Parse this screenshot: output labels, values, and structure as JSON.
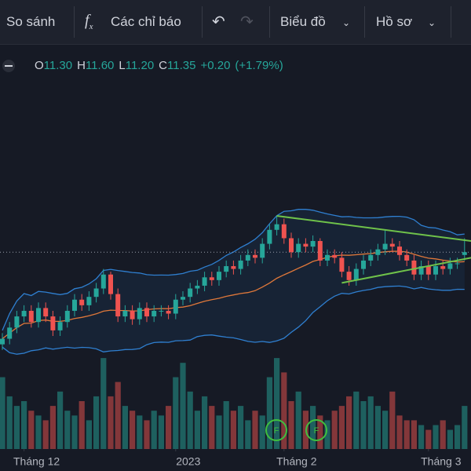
{
  "toolbar": {
    "compare": "So sánh",
    "indicators": "Các chỉ báo",
    "chart": "Biểu đồ",
    "profile": "Hồ sơ"
  },
  "legend": {
    "items": [
      {
        "label": "O",
        "value": "11.30"
      },
      {
        "label": "H",
        "value": "11.60"
      },
      {
        "label": "L",
        "value": "11.20"
      },
      {
        "label": "C",
        "value": "11.35"
      }
    ],
    "change": "+0.20",
    "change_pct": "(+1.79%)"
  },
  "chart_data": {
    "type": "candlestick",
    "xticks": [
      {
        "value": 3,
        "label": "Tháng 12"
      },
      {
        "value": 24,
        "label": "2023"
      },
      {
        "value": 39,
        "label": "Tháng 2"
      },
      {
        "value": 59,
        "label": "Tháng 3"
      }
    ],
    "ylim": [
      9.4,
      14.6
    ],
    "open": [
      9.7,
      9.8,
      10.0,
      10.2,
      10.3,
      10.1,
      10.35,
      10.2,
      9.95,
      10.1,
      10.3,
      10.5,
      10.4,
      10.55,
      10.7,
      10.95,
      10.6,
      10.2,
      10.3,
      10.15,
      10.35,
      10.2,
      10.3,
      10.3,
      10.25,
      10.5,
      10.55,
      10.7,
      10.75,
      10.9,
      10.85,
      11.0,
      11.1,
      11.05,
      11.2,
      11.3,
      11.25,
      11.5,
      11.75,
      11.85,
      11.6,
      11.35,
      11.5,
      11.45,
      11.55,
      11.2,
      11.3,
      11.25,
      11.0,
      10.85,
      11.05,
      11.2,
      11.3,
      11.4,
      11.5,
      11.45,
      11.3,
      11.2,
      10.95,
      11.1,
      10.95,
      11.1,
      11.05,
      11.15,
      11.3
    ],
    "high": [
      9.9,
      10.1,
      10.3,
      10.4,
      10.4,
      10.45,
      10.45,
      10.3,
      10.2,
      10.4,
      10.6,
      10.6,
      10.65,
      10.8,
      11.05,
      11.0,
      10.7,
      10.4,
      10.4,
      10.45,
      10.45,
      10.4,
      10.4,
      10.4,
      10.6,
      10.65,
      10.8,
      10.85,
      11.0,
      11.0,
      11.1,
      11.2,
      11.2,
      11.3,
      11.4,
      11.4,
      11.6,
      11.85,
      12.0,
      11.95,
      11.7,
      11.6,
      11.6,
      11.65,
      11.6,
      11.4,
      11.4,
      11.35,
      11.1,
      11.15,
      11.3,
      11.4,
      11.5,
      11.75,
      11.6,
      11.55,
      11.4,
      11.3,
      11.2,
      11.2,
      11.2,
      11.2,
      11.25,
      11.25,
      11.6
    ],
    "low": [
      9.6,
      9.7,
      9.9,
      10.1,
      10.0,
      10.0,
      10.1,
      9.85,
      9.85,
      10.0,
      10.2,
      10.3,
      10.3,
      10.45,
      10.6,
      10.5,
      10.1,
      10.1,
      10.05,
      10.05,
      10.1,
      10.1,
      10.2,
      10.15,
      10.15,
      10.4,
      10.45,
      10.6,
      10.65,
      10.75,
      10.75,
      10.9,
      10.95,
      10.95,
      11.1,
      11.15,
      11.15,
      11.4,
      11.65,
      11.5,
      11.25,
      11.25,
      11.35,
      11.35,
      11.1,
      11.1,
      11.15,
      10.9,
      10.75,
      10.75,
      10.95,
      11.1,
      11.2,
      11.3,
      11.35,
      11.2,
      11.1,
      10.85,
      10.85,
      10.85,
      10.85,
      10.95,
      10.95,
      11.05,
      11.2
    ],
    "close": [
      9.8,
      10.0,
      10.2,
      10.3,
      10.1,
      10.35,
      10.2,
      9.95,
      10.1,
      10.3,
      10.5,
      10.4,
      10.55,
      10.7,
      10.95,
      10.6,
      10.2,
      10.3,
      10.15,
      10.35,
      10.2,
      10.3,
      10.3,
      10.25,
      10.5,
      10.55,
      10.7,
      10.75,
      10.9,
      10.85,
      11.0,
      11.1,
      11.05,
      11.2,
      11.3,
      11.25,
      11.5,
      11.75,
      11.85,
      11.6,
      11.35,
      11.5,
      11.45,
      11.55,
      11.2,
      11.3,
      11.25,
      11.0,
      10.85,
      11.05,
      11.2,
      11.3,
      11.4,
      11.5,
      11.45,
      11.3,
      11.2,
      10.95,
      11.1,
      10.95,
      11.1,
      11.05,
      11.15,
      11.15,
      11.35
    ],
    "vlim": [
      0,
      100
    ],
    "volume": [
      75,
      55,
      45,
      50,
      40,
      35,
      30,
      45,
      60,
      40,
      35,
      50,
      30,
      55,
      95,
      55,
      70,
      45,
      40,
      35,
      30,
      40,
      35,
      45,
      75,
      90,
      60,
      40,
      55,
      45,
      35,
      50,
      40,
      45,
      30,
      40,
      35,
      75,
      95,
      80,
      50,
      60,
      40,
      45,
      35,
      30,
      40,
      45,
      55,
      60,
      50,
      55,
      45,
      40,
      60,
      35,
      30,
      30,
      25,
      20,
      25,
      30,
      20,
      25,
      45
    ]
  }
}
